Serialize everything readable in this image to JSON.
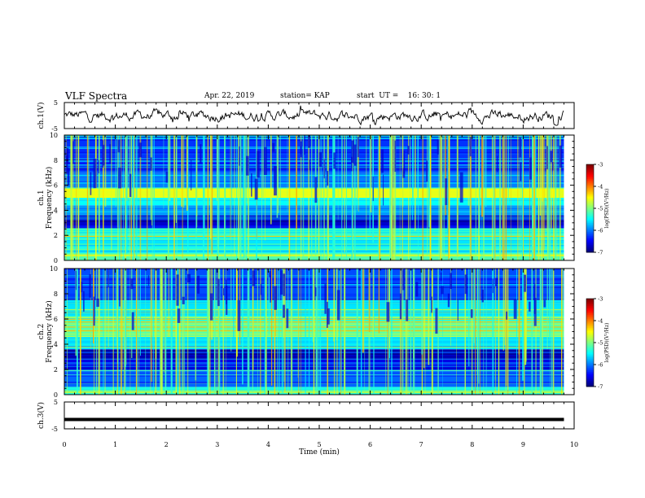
{
  "header": {
    "title": "VLF Spectra",
    "date": "Apr. 22, 2019",
    "station": "station= KAP",
    "start": "start  UT =    16: 30: 1"
  },
  "colors": {
    "waveform": "#000000",
    "background": "#ffffff"
  },
  "chart_data": [
    {
      "type": "line",
      "panel": "ch1-waveform",
      "ylabel": "ch.1(V)",
      "yticks": [
        "5",
        "-5"
      ],
      "ylim": [
        -5,
        5
      ],
      "xlim": [
        0,
        10
      ],
      "series": [
        {
          "values_note_free": true
        }
      ],
      "description_values": {
        "x_range_min": [
          0,
          9.8
        ],
        "approx_y_range_V": [
          -3,
          3
        ]
      }
    },
    {
      "type": "heatmap",
      "panel": "ch1-spectrogram",
      "ylabel": "ch.1\nFrequency (kHz)",
      "yticks": [
        "0",
        "2",
        "4",
        "6",
        "8",
        "10"
      ],
      "ylim": [
        0,
        10
      ],
      "xlim": [
        0,
        10
      ],
      "data_xrange_min": [
        0,
        9.8
      ],
      "colorbar": {
        "label": "log(PSD)(V²/Hz)",
        "ticks": [
          "-3",
          "-4",
          "-5",
          "-6",
          "-7"
        ],
        "range": [
          -7,
          -3
        ]
      },
      "bands_kHz": [
        {
          "f": [
            0,
            0.6
          ],
          "level": -5.2
        },
        {
          "f": [
            0.6,
            1.0
          ],
          "level": -5.4
        },
        {
          "f": [
            1.0,
            1.6
          ],
          "level": -5.6
        },
        {
          "f": [
            1.6,
            2.6
          ],
          "level": -5.3
        },
        {
          "f": [
            2.6,
            3.6
          ],
          "level": -6.7
        },
        {
          "f": [
            3.6,
            4.4
          ],
          "level": -5.9
        },
        {
          "f": [
            4.4,
            5.0
          ],
          "level": -5.5
        },
        {
          "f": [
            5.0,
            5.8
          ],
          "level": -4.6
        },
        {
          "f": [
            5.8,
            7.0
          ],
          "level": -6.0
        },
        {
          "f": [
            7.0,
            10.0
          ],
          "level": -6.3
        }
      ]
    },
    {
      "type": "heatmap",
      "panel": "ch2-spectrogram",
      "ylabel": "ch.2\nFrequency (kHz)",
      "yticks": [
        "0",
        "2",
        "4",
        "6",
        "8",
        "10"
      ],
      "ylim": [
        0,
        10
      ],
      "xlim": [
        0,
        10
      ],
      "data_xrange_min": [
        0,
        9.8
      ],
      "colorbar": {
        "label": "log(PSD)(V²/Hz)",
        "ticks": [
          "-3",
          "-4",
          "-5",
          "-6",
          "-7"
        ],
        "range": [
          -7,
          -3
        ]
      },
      "bands_kHz": [
        {
          "f": [
            0,
            0.6
          ],
          "level": -5.4
        },
        {
          "f": [
            0.6,
            2.0
          ],
          "level": -6.1
        },
        {
          "f": [
            2.0,
            2.8
          ],
          "level": -6.6
        },
        {
          "f": [
            2.8,
            3.6
          ],
          "level": -6.8
        },
        {
          "f": [
            3.6,
            4.6
          ],
          "level": -5.6
        },
        {
          "f": [
            4.6,
            6.2
          ],
          "level": -5.0
        },
        {
          "f": [
            6.2,
            7.5
          ],
          "level": -5.6
        },
        {
          "f": [
            7.5,
            10.0
          ],
          "level": -6.2
        }
      ]
    },
    {
      "type": "line",
      "panel": "ch3-waveform",
      "ylabel": "ch.3(V)",
      "yticks": [
        "5",
        "-5"
      ],
      "ylim": [
        -5,
        5
      ],
      "xlim": [
        0,
        10
      ],
      "xlabel": "Time (min)",
      "xticks": [
        "0",
        "1",
        "2",
        "3",
        "4",
        "5",
        "6",
        "7",
        "8",
        "9",
        "10"
      ],
      "data_xrange_min": [
        0,
        9.8
      ],
      "constant_value_V": -1.5
    }
  ]
}
